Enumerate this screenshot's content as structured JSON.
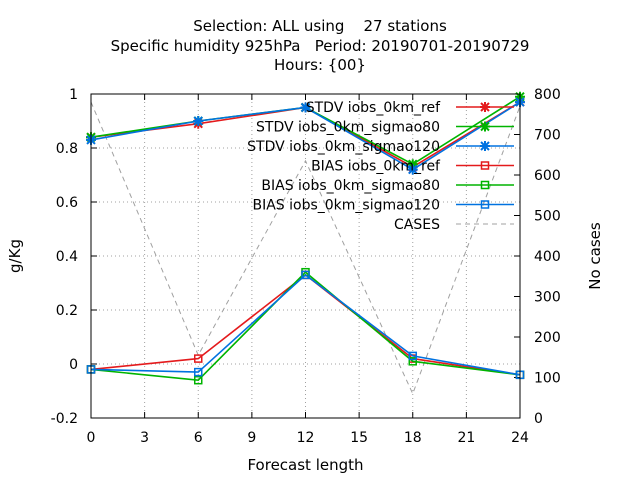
{
  "chart_data": {
    "type": "line",
    "title": [
      "Selection: ALL using    27 stations",
      "Specific humidity 925hPa   Period: 20190701-20190729",
      "Hours: {00}"
    ],
    "xlabel": "Forecast length",
    "ylabel": "g/Kg",
    "y2label": "No cases",
    "x": [
      0,
      6,
      12,
      18,
      24
    ],
    "xticks": [
      "0",
      "3",
      "6",
      "9",
      "12",
      "15",
      "18",
      "21",
      "24"
    ],
    "xtick_values": [
      0,
      3,
      6,
      9,
      12,
      15,
      18,
      21,
      24
    ],
    "xlim": [
      0,
      24
    ],
    "ylim": [
      -0.2,
      1.0
    ],
    "yticks": [
      "-0.2",
      "0",
      "0.2",
      "0.4",
      "0.6",
      "0.8",
      "1"
    ],
    "ytick_values": [
      -0.2,
      0,
      0.2,
      0.4,
      0.6,
      0.8,
      1.0
    ],
    "y2lim": [
      0,
      800
    ],
    "y2ticks": [
      "0",
      "100",
      "200",
      "300",
      "400",
      "500",
      "600",
      "700",
      "800"
    ],
    "y2tick_values": [
      0,
      100,
      200,
      300,
      400,
      500,
      600,
      700,
      800
    ],
    "grid": true,
    "legend_position": "top-right",
    "series": [
      {
        "name": "STDV iobs_0km_ref",
        "color": "#e41a1c",
        "marker": "x",
        "values": [
          0.84,
          0.89,
          0.95,
          0.73,
          0.97
        ]
      },
      {
        "name": "STDV iobs_0km_sigmao80",
        "color": "#00b400",
        "marker": "x",
        "values": [
          0.84,
          0.9,
          0.95,
          0.74,
          0.99
        ]
      },
      {
        "name": "STDV iobs_0km_sigmao120",
        "color": "#0072e0",
        "marker": "x",
        "values": [
          0.83,
          0.9,
          0.95,
          0.72,
          0.97
        ]
      },
      {
        "name": "BIAS iobs_0km_ref",
        "color": "#e41a1c",
        "marker": "square",
        "values": [
          -0.02,
          0.02,
          0.33,
          0.02,
          -0.04
        ]
      },
      {
        "name": "BIAS iobs_0km_sigmao80",
        "color": "#00b400",
        "marker": "square",
        "values": [
          -0.02,
          -0.06,
          0.34,
          0.01,
          -0.04
        ]
      },
      {
        "name": "BIAS iobs_0km_sigmao120",
        "color": "#0072e0",
        "marker": "square",
        "values": [
          -0.02,
          -0.03,
          0.33,
          0.03,
          -0.04
        ]
      },
      {
        "name": "CASES",
        "color": "#a0a0a0",
        "marker": "none",
        "dashed": true,
        "axis": "y2",
        "values": [
          780,
          155,
          635,
          60,
          770
        ]
      }
    ]
  }
}
